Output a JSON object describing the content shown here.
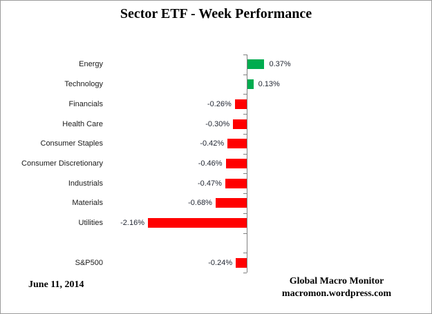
{
  "title": "Sector ETF - Week Performance",
  "footer": {
    "date": "June 11, 2014",
    "source_line1": "Global Macro Monitor",
    "source_line2": "macromon.wordpress.com"
  },
  "chart_data": {
    "type": "bar",
    "orientation": "horizontal",
    "title": "Sector ETF - Week Performance",
    "categories": [
      "Energy",
      "Technology",
      "Financials",
      "Health Care",
      "Consumer Staples",
      "Consumer Discretionary",
      "Industrials",
      "Materials",
      "Utilities",
      "",
      "S&P500"
    ],
    "values": [
      0.37,
      0.13,
      -0.26,
      -0.3,
      -0.42,
      -0.46,
      -0.47,
      -0.68,
      -2.16,
      null,
      -0.24
    ],
    "value_labels": [
      "0.37%",
      "0.13%",
      "-0.26%",
      "-0.30%",
      "-0.42%",
      "-0.46%",
      "-0.47%",
      "-0.68%",
      "-2.16%",
      "",
      "-0.24%"
    ],
    "unit": "%",
    "xlim": [
      -2.5,
      0.6
    ],
    "grid": false,
    "legend": false,
    "positive_color": "#00AC4F",
    "negative_color": "#FF0000",
    "axis_color": "#808080",
    "label_color": "#1f2430"
  }
}
